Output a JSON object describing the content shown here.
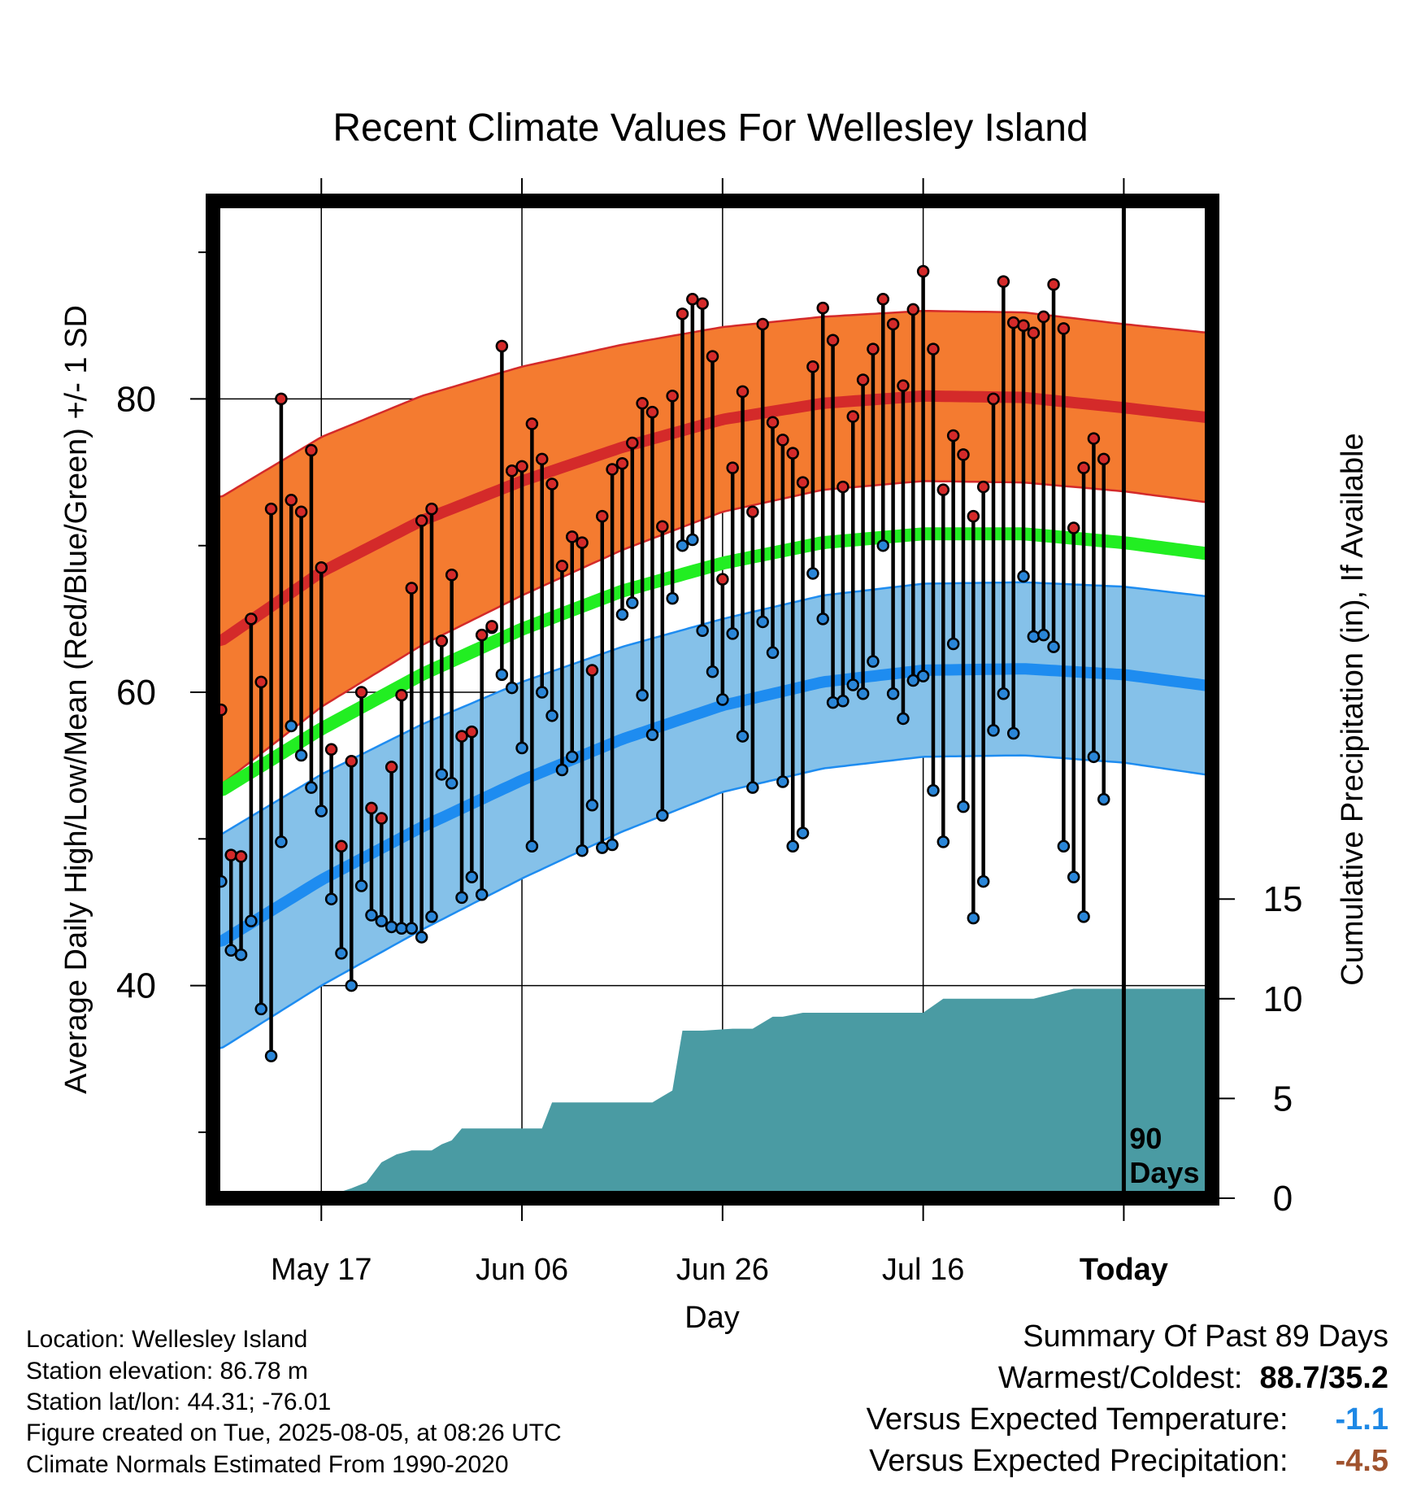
{
  "title": "Recent Climate Values For Wellesley Island",
  "footer": {
    "location": "Location: Wellesley Island",
    "elevation": "Station elevation: 86.78 m",
    "latlon": "Station lat/lon: 44.31; -76.01",
    "created": "Figure created on Tue, 2025-08-05, at 08:26 UTC",
    "normals": "Climate Normals Estimated From 1990-2020"
  },
  "summary": {
    "heading": "Summary Of Past 89 Days",
    "warm_cold_label": "Warmest/Coldest:",
    "warm_cold_value": "88.7/35.2",
    "temp_label": "Versus Expected Temperature:",
    "temp_value": "-1.1",
    "precip_label": "Versus Expected Precipitation:",
    "precip_value": "-4.5",
    "temp_value_color": "#1e88e5",
    "precip_value_color": "#a0522d"
  },
  "chart_data": {
    "type": "line",
    "xlabel": "Day",
    "ylabel": "Average Daily High/Low/Mean (Red/Blue/Green) +/- 1 SD",
    "y2label": "Cumulative Precipitation (in), If Available",
    "x_ticks": [
      "May 17",
      "Jun 06",
      "Jun 26",
      "Jul 16",
      "Today"
    ],
    "x_tick_days": [
      10,
      30,
      50,
      70,
      90
    ],
    "xlim": [
      -0.8,
      98.8
    ],
    "ylim": [
      25.5,
      93.5
    ],
    "y_ticks": [
      40,
      60,
      80
    ],
    "y_minor_ticks": [
      30,
      50,
      70,
      90
    ],
    "y2lim": [
      0,
      50
    ],
    "y2_ticks": [
      0,
      5,
      10,
      15
    ],
    "today_day": 90,
    "today_label": [
      "90",
      "Days"
    ],
    "grid": true,
    "colors": {
      "high_band": "#f47b30",
      "high_line": "#d42a2a",
      "low_band": "#85c1e9",
      "low_line": "#1e8cf0",
      "mean_line": "#22ee22",
      "precip": "#4a9ba3",
      "high_dot": "#d42a2a",
      "low_dot": "#2a86d8"
    },
    "normal_days": [
      0,
      10,
      20,
      30,
      40,
      50,
      60,
      70,
      80,
      90,
      100
    ],
    "normal_high": [
      63.5,
      68.2,
      71.7,
      74.4,
      76.7,
      78.6,
      79.7,
      80.2,
      80.1,
      79.4,
      78.6
    ],
    "normal_high_sd": [
      9.8,
      9.2,
      8.5,
      7.8,
      7.0,
      6.3,
      5.9,
      5.8,
      5.8,
      5.7,
      5.8
    ],
    "normal_low": [
      43.0,
      47.2,
      50.8,
      54.0,
      56.8,
      59.1,
      60.7,
      61.5,
      61.6,
      61.2,
      60.3
    ],
    "normal_low_sd": [
      7.3,
      7.2,
      7.0,
      6.7,
      6.3,
      5.9,
      5.9,
      5.9,
      5.9,
      6.0,
      6.1
    ],
    "normal_mean": [
      53.3,
      57.5,
      61.2,
      64.3,
      66.9,
      68.8,
      70.2,
      70.8,
      70.8,
      70.2,
      69.3
    ],
    "obs_days": [
      0,
      1,
      2,
      3,
      4,
      5,
      6,
      7,
      8,
      9,
      10,
      11,
      12,
      13,
      14,
      15,
      16,
      17,
      18,
      19,
      20,
      21,
      22,
      23,
      24,
      25,
      26,
      27,
      28,
      29,
      30,
      31,
      32,
      33,
      34,
      35,
      36,
      37,
      38,
      39,
      40,
      41,
      42,
      43,
      44,
      45,
      46,
      47,
      48,
      49,
      50,
      51,
      52,
      53,
      54,
      55,
      56,
      57,
      58,
      59,
      60,
      61,
      62,
      63,
      64,
      65,
      66,
      67,
      68,
      69,
      70,
      71,
      72,
      73,
      74,
      75,
      76,
      77,
      78,
      79,
      80,
      81,
      82,
      83,
      84,
      85,
      86,
      87,
      88
    ],
    "obs_high": [
      58.8,
      48.9,
      48.8,
      65.0,
      60.7,
      72.5,
      80.0,
      73.1,
      72.3,
      76.5,
      68.5,
      56.1,
      49.5,
      55.3,
      60.0,
      52.1,
      51.4,
      54.9,
      59.8,
      67.1,
      71.7,
      72.5,
      63.5,
      68.0,
      57.0,
      57.3,
      63.9,
      64.5,
      83.6,
      75.1,
      75.4,
      78.3,
      75.9,
      74.2,
      68.6,
      70.6,
      70.2,
      61.5,
      72.0,
      75.2,
      75.6,
      77.0,
      79.7,
      79.1,
      71.3,
      80.2,
      85.8,
      86.8,
      86.5,
      82.9,
      67.7,
      75.3,
      80.5,
      72.3,
      85.1,
      78.4,
      77.2,
      76.3,
      74.3,
      82.2,
      86.2,
      84.0,
      74.0,
      78.8,
      81.3,
      83.4,
      86.8,
      85.1,
      80.9,
      86.1,
      88.7,
      83.4,
      73.8,
      77.5,
      76.2,
      72.0,
      74.0,
      80.0,
      88.0,
      85.2,
      85.0,
      84.5,
      85.6,
      87.8,
      84.8,
      71.2,
      75.3,
      77.3,
      75.9
    ],
    "obs_low": [
      47.1,
      42.4,
      42.1,
      44.4,
      38.4,
      35.2,
      49.8,
      57.7,
      55.7,
      53.5,
      51.9,
      45.9,
      42.2,
      40.0,
      46.8,
      44.8,
      44.4,
      44.0,
      43.9,
      43.9,
      43.3,
      44.7,
      54.4,
      53.8,
      46.0,
      47.4,
      46.2,
      64.4,
      61.2,
      60.3,
      56.2,
      49.5,
      60.0,
      58.4,
      54.7,
      55.6,
      49.2,
      52.3,
      49.4,
      49.6,
      65.3,
      66.1,
      59.8,
      57.1,
      51.6,
      66.4,
      70.0,
      70.4,
      64.2,
      61.4,
      59.5,
      64.0,
      57.0,
      53.5,
      64.8,
      62.7,
      53.9,
      49.5,
      50.4,
      68.1,
      65.0,
      59.3,
      59.4,
      60.5,
      59.9,
      62.1,
      70.0,
      59.9,
      58.2,
      60.8,
      61.1,
      53.3,
      49.8,
      63.3,
      52.2,
      44.6,
      47.1,
      57.4,
      59.9,
      57.2,
      67.9,
      63.8,
      63.9,
      63.1,
      49.5,
      47.4,
      44.7,
      55.6,
      52.7
    ],
    "precip_days": [
      -0.8,
      10,
      13,
      14.5,
      16,
      17.5,
      19,
      21,
      22,
      23,
      24,
      25,
      26,
      27,
      29,
      31,
      32,
      33,
      34,
      37,
      40,
      43,
      44,
      45,
      46,
      47,
      48,
      51,
      53,
      55,
      56,
      58,
      60,
      62,
      64,
      66,
      69,
      70,
      72,
      75,
      76,
      77,
      80,
      81,
      85,
      88,
      91,
      98.8
    ],
    "precip_vals": [
      0,
      0,
      0.5,
      0.8,
      1.8,
      2.2,
      2.4,
      2.4,
      2.7,
      2.9,
      3.5,
      3.5,
      3.5,
      3.5,
      3.5,
      3.5,
      3.5,
      4.8,
      4.8,
      4.8,
      4.8,
      4.8,
      5.1,
      5.4,
      8.4,
      8.4,
      8.4,
      8.5,
      8.5,
      9.1,
      9.1,
      9.3,
      9.3,
      9.3,
      9.3,
      9.3,
      9.3,
      9.3,
      10.0,
      10.0,
      10.0,
      10.0,
      10.0,
      10.0,
      10.5,
      10.5,
      10.5,
      10.5
    ]
  }
}
